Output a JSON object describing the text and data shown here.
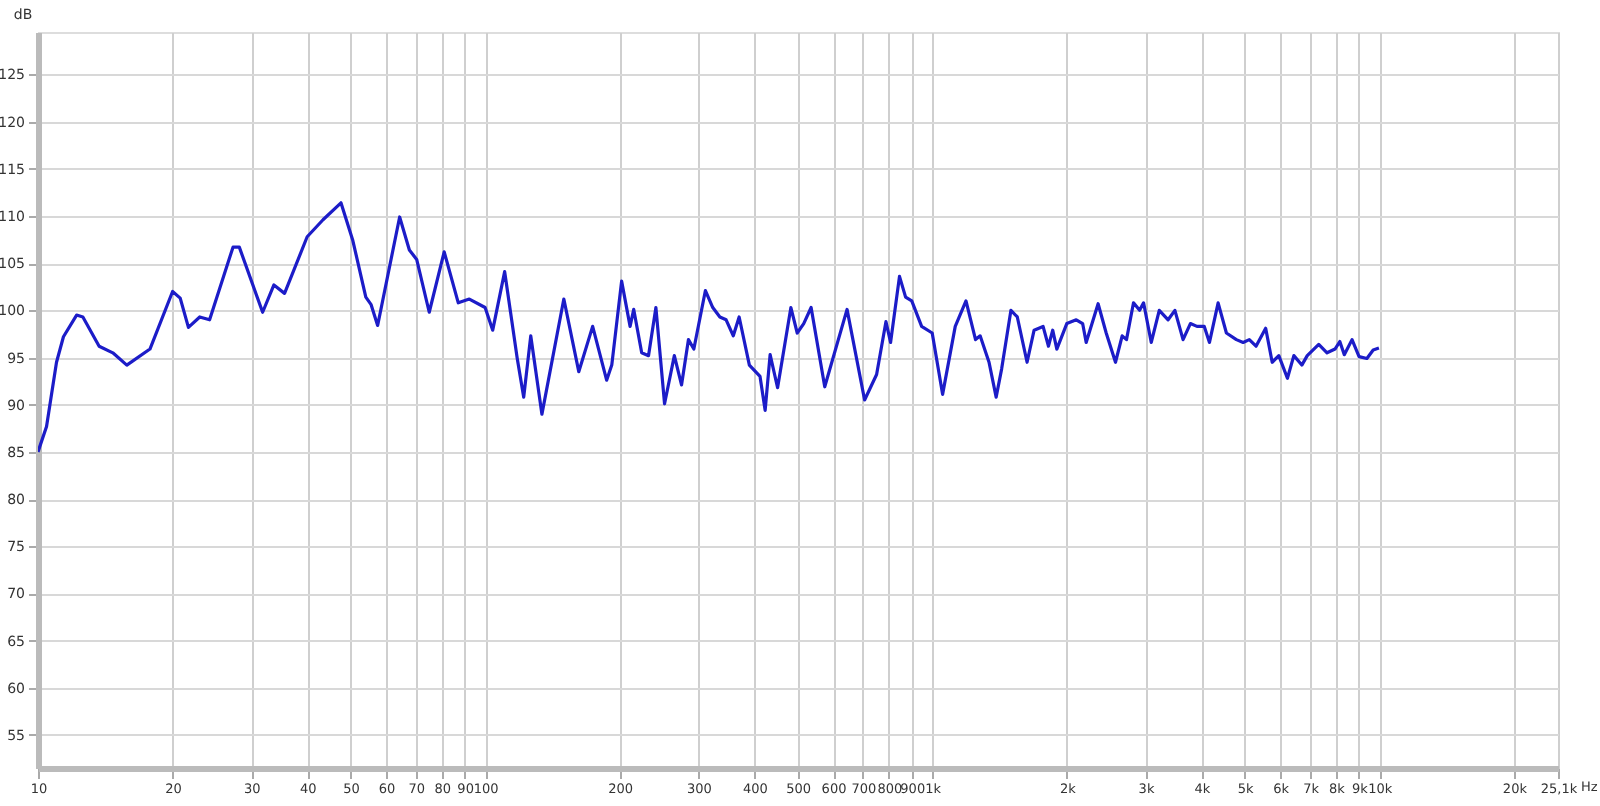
{
  "chart_data": {
    "type": "line",
    "ylabel": "dB",
    "log": "x",
    "grid": true,
    "marker": "none",
    "line_style": "solid",
    "xlim": [
      10,
      25100
    ],
    "ylim": [
      51.5,
      129.5
    ],
    "xticks": [
      10,
      20,
      30,
      40,
      50,
      60,
      70,
      80,
      90,
      100,
      200,
      300,
      400,
      500,
      600,
      700,
      800,
      900,
      {
        "value": 1000,
        "label": "1k"
      },
      {
        "value": 2000,
        "label": "2k"
      },
      {
        "value": 3000,
        "label": "3k"
      },
      {
        "value": 4000,
        "label": "4k"
      },
      {
        "value": 5000,
        "label": "5k"
      },
      {
        "value": 6000,
        "label": "6k"
      },
      {
        "value": 7000,
        "label": "7k"
      },
      {
        "value": 8000,
        "label": "8k"
      },
      {
        "value": 9000,
        "label": "9k"
      },
      {
        "value": 10000,
        "label": "10k"
      },
      {
        "value": 20000,
        "label": "20k"
      },
      {
        "value": 25100,
        "label": "25,1k"
      }
    ],
    "xlabel": "Hz",
    "yticks": [
      55,
      60,
      65,
      70,
      75,
      80,
      85,
      90,
      95,
      100,
      105,
      110,
      115,
      120,
      125
    ],
    "series": [
      {
        "color": "#1c1cc8",
        "x": [
          10,
          10.45,
          11.0,
          11.4,
          12.2,
          12.6,
          13.7,
          14.7,
          15.8,
          17.8,
          20.0,
          20.8,
          21.7,
          23.0,
          24.2,
          27.3,
          28.2,
          31.8,
          33.7,
          35.6,
          40.0,
          43.4,
          47.6,
          50.6,
          54.1,
          55.6,
          57.5,
          64.4,
          67.7,
          70.3,
          75.0,
          81.0,
          87.1,
          92.2,
          100,
          104,
          110.6,
          118,
          122,
          126.5,
          134,
          150,
          162,
          174,
          187,
          192,
          202,
          211,
          215,
          224,
          232,
          241,
          252,
          265,
          275,
          285,
          293,
          311,
          323,
          335,
          346,
          359,
          370,
          390,
          412,
          423,
          434,
          451,
          483,
          499,
          516,
          536,
          575,
          645,
          706,
          751,
          788,
          807,
          845,
          872,
          900,
          947,
          1000,
          1055,
          1126,
          1190,
          1250,
          1280,
          1340,
          1390,
          1430,
          1500,
          1550,
          1630,
          1690,
          1770,
          1820,
          1860,
          1900,
          2000,
          2100,
          2170,
          2210,
          2350,
          2450,
          2570,
          2660,
          2720,
          2820,
          2910,
          2970,
          3090,
          3220,
          3370,
          3490,
          3640,
          3780,
          3910,
          4060,
          4170,
          4360,
          4550,
          4790,
          4960,
          5120,
          5300,
          5570,
          5760,
          5960,
          6230,
          6440,
          6710,
          6900,
          7320,
          7640,
          7960,
          8160,
          8350,
          8690,
          9010,
          9380,
          9690,
          9980
        ],
        "values": [
          85.0,
          87.7,
          94.5,
          97.2,
          99.5,
          99.3,
          96.2,
          95.5,
          94.2,
          95.9,
          102.0,
          101.3,
          98.2,
          99.3,
          99.0,
          106.7,
          106.7,
          99.8,
          102.7,
          101.8,
          107.8,
          109.6,
          111.4,
          107.4,
          101.4,
          100.6,
          98.4,
          109.9,
          106.4,
          105.4,
          99.8,
          106.2,
          100.8,
          101.2,
          100.3,
          97.9,
          104.1,
          94.9,
          90.8,
          97.3,
          89.0,
          101.2,
          93.5,
          98.3,
          92.6,
          94.2,
          103.1,
          98.3,
          100.1,
          95.5,
          95.2,
          100.3,
          90.1,
          95.2,
          92.1,
          96.9,
          95.9,
          102.1,
          100.3,
          99.3,
          99.0,
          97.3,
          99.3,
          94.2,
          93.0,
          89.4,
          95.3,
          91.8,
          100.3,
          97.6,
          98.6,
          100.3,
          91.9,
          100.1,
          90.5,
          93.2,
          98.8,
          96.6,
          103.6,
          101.4,
          101.0,
          98.3,
          97.6,
          91.1,
          98.3,
          101.0,
          96.9,
          97.3,
          94.5,
          90.8,
          93.8,
          100.0,
          99.3,
          94.5,
          97.9,
          98.3,
          96.2,
          97.9,
          95.9,
          98.6,
          99.0,
          98.6,
          96.6,
          100.7,
          97.6,
          94.5,
          97.3,
          96.9,
          100.8,
          100.0,
          100.8,
          96.6,
          100.0,
          99.0,
          100.0,
          96.9,
          98.6,
          98.3,
          98.3,
          96.6,
          100.8,
          97.6,
          96.9,
          96.6,
          96.9,
          96.2,
          98.1,
          94.5,
          95.2,
          92.8,
          95.2,
          94.2,
          95.2,
          96.4,
          95.5,
          95.9,
          96.7,
          95.3,
          96.9,
          95.1,
          94.9,
          95.8,
          96.0
        ]
      }
    ]
  }
}
